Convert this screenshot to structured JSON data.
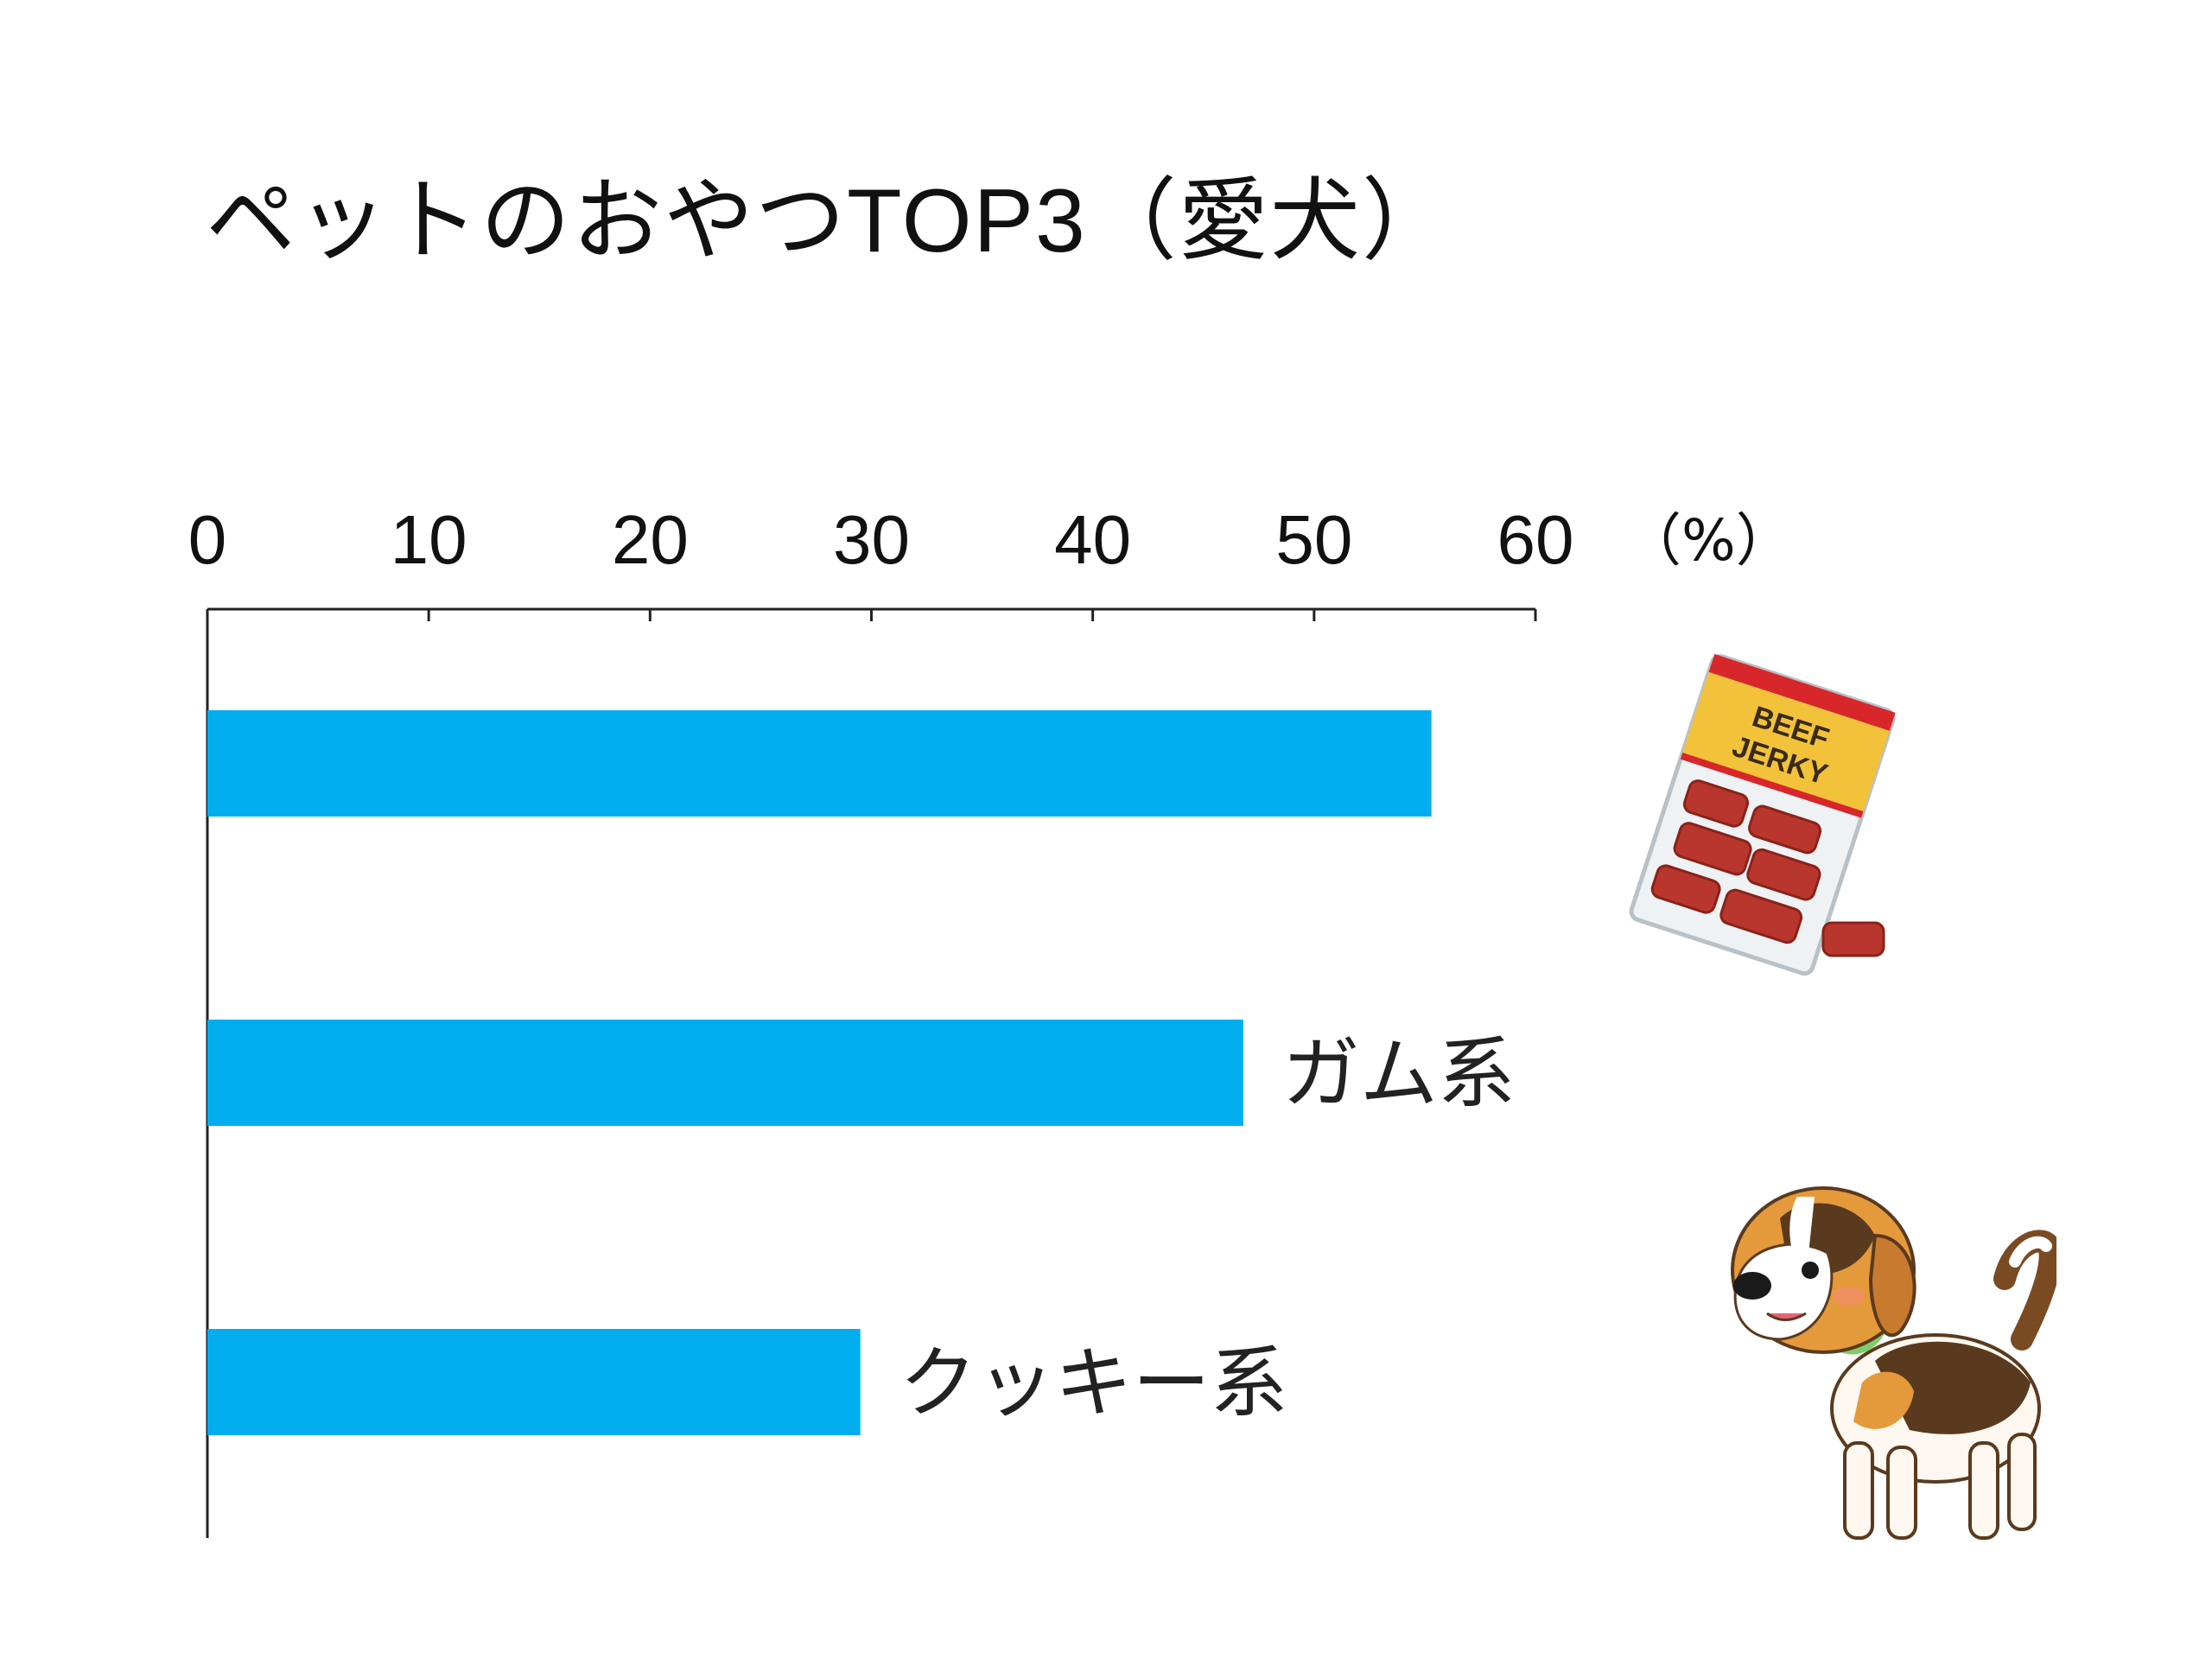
{
  "title": {
    "main": "ペットのおやつ",
    "latin": "TOP3",
    "suffix": "（愛犬）"
  },
  "chart_data": {
    "type": "bar",
    "orientation": "horizontal",
    "title": "ペットのおやつTOP3（愛犬）",
    "unit": "（%）",
    "xlim": [
      0,
      60
    ],
    "ticks": [
      0,
      10,
      20,
      30,
      40,
      50,
      60
    ],
    "categories": [
      "",
      "ガム系",
      "クッキー系"
    ],
    "values": [
      55.3,
      46.8,
      29.5
    ],
    "bar_color": "#00AEEF"
  },
  "illustrations": {
    "jerky_text_1": "BEEF",
    "jerky_text_2": "JERKY",
    "dog": "beagle-illustration"
  }
}
